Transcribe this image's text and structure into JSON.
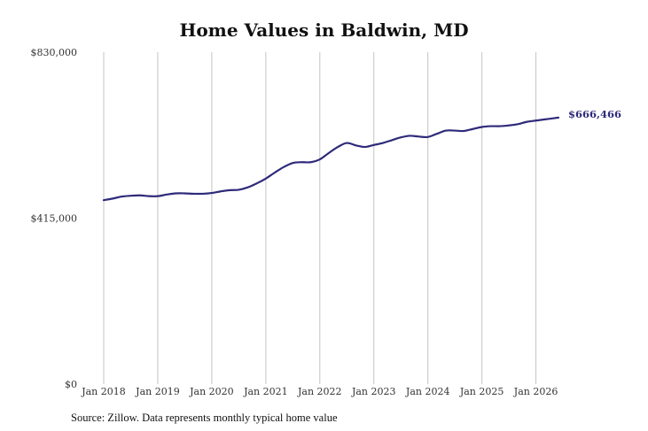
{
  "chart_data": {
    "type": "line",
    "title": "Home Values in Baldwin, MD",
    "xlabel": "",
    "ylabel": "",
    "ylim": [
      0,
      830000
    ],
    "y_ticks": [
      "$830,000",
      "$415,000",
      "$0"
    ],
    "y_tick_values": [
      830000,
      415000,
      0
    ],
    "x_ticks": [
      "Jan 2018",
      "Jan 2019",
      "Jan 2020",
      "Jan 2021",
      "Jan 2022",
      "Jan 2023",
      "Jan 2024",
      "Jan 2025",
      "Jan 2026"
    ],
    "x_tick_values": [
      2018,
      2019,
      2020,
      2021,
      2022,
      2023,
      2024,
      2025,
      2026
    ],
    "xlim": [
      2018,
      2026.45
    ],
    "grid": "vertical",
    "series_color": "#2e2a7a",
    "end_label": "$666,466",
    "series": [
      {
        "x": [
          2018.0,
          2018.1667,
          2018.3333,
          2018.5,
          2018.6667,
          2018.8333,
          2019.0,
          2019.1667,
          2019.3333,
          2019.5,
          2019.6667,
          2019.8333,
          2020.0,
          2020.1667,
          2020.3333,
          2020.5,
          2020.6667,
          2020.8333,
          2021.0,
          2021.1667,
          2021.3333,
          2021.5,
          2021.6667,
          2021.8333,
          2022.0,
          2022.1667,
          2022.3333,
          2022.5,
          2022.6667,
          2022.8333,
          2023.0,
          2023.1667,
          2023.3333,
          2023.5,
          2023.6667,
          2023.8333,
          2024.0,
          2024.1667,
          2024.3333,
          2024.5,
          2024.6667,
          2024.8333,
          2025.0,
          2025.1667,
          2025.3333,
          2025.5,
          2025.6667,
          2025.8333,
          2026.0,
          2026.1667,
          2026.3333,
          2026.4167
        ],
        "y": [
          460000,
          464000,
          469000,
          471000,
          472000,
          470000,
          470000,
          474000,
          477000,
          477000,
          476000,
          476000,
          478000,
          482000,
          485000,
          486000,
          492000,
          502000,
          514000,
          529000,
          543000,
          553000,
          555000,
          555000,
          562000,
          578000,
          593000,
          603000,
          597000,
          593000,
          598000,
          603000,
          610000,
          617000,
          621000,
          619000,
          618000,
          626000,
          634000,
          634000,
          633000,
          638000,
          643000,
          645000,
          645000,
          647000,
          650000,
          656000,
          659000,
          662000,
          665000,
          666466
        ]
      }
    ]
  }
}
